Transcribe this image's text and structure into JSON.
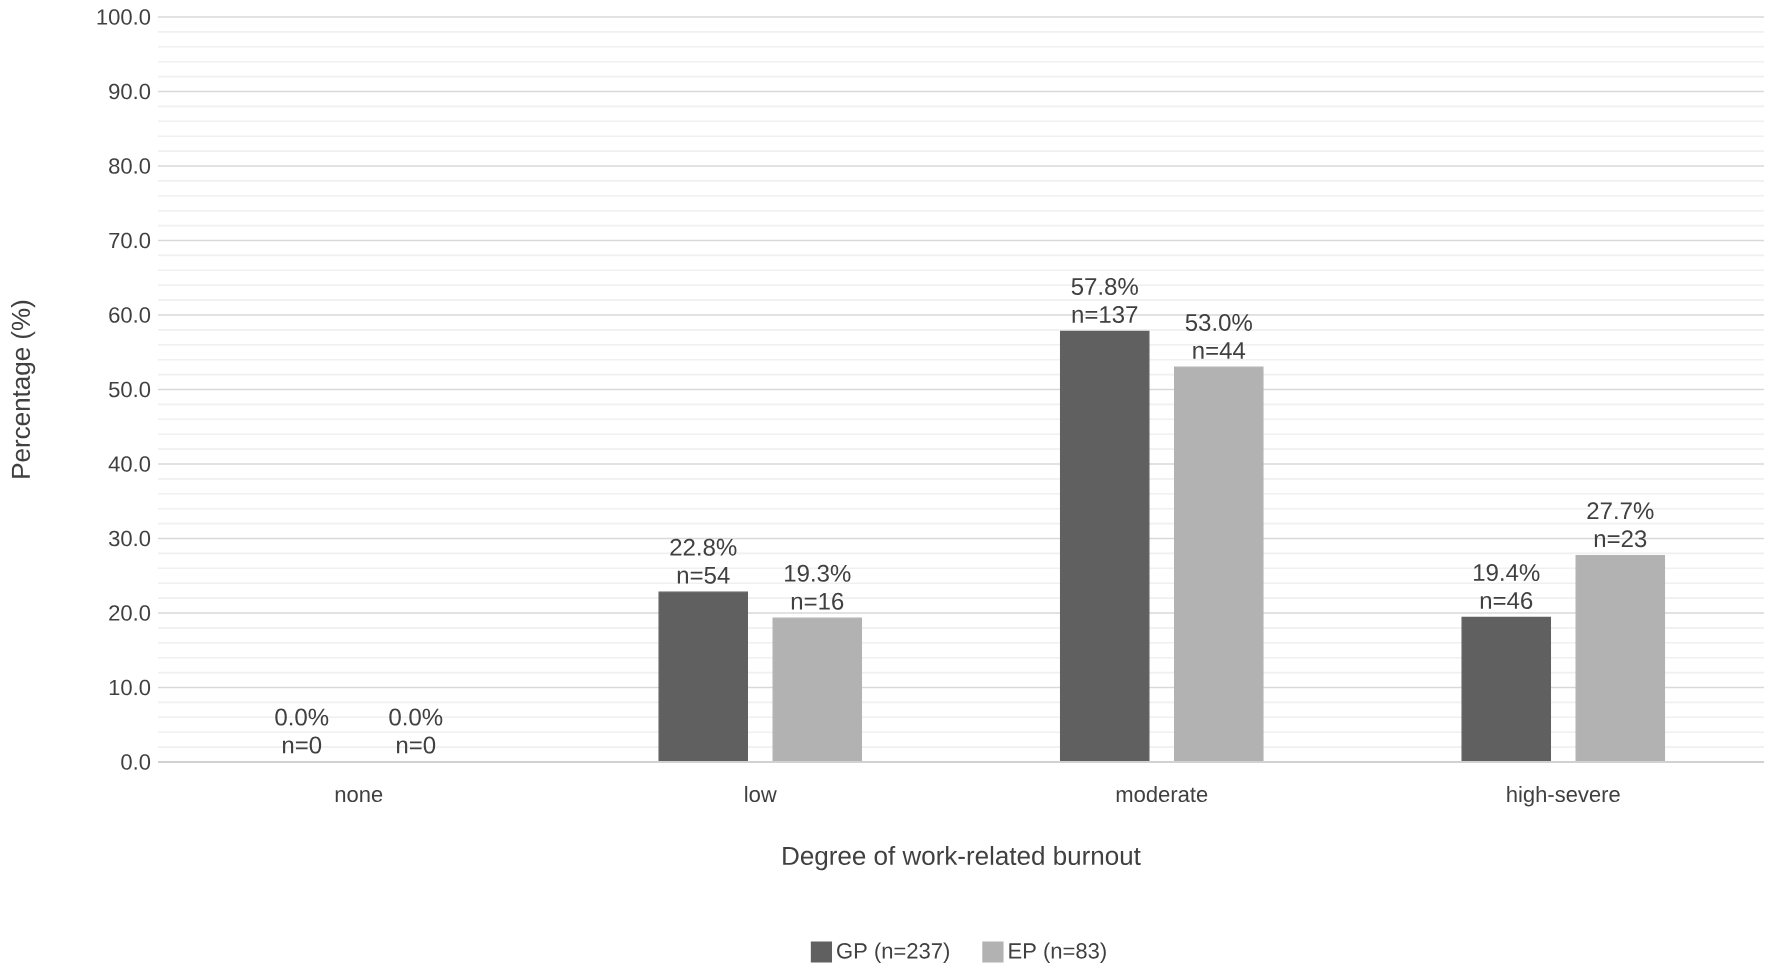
{
  "chart_data": {
    "type": "bar",
    "xlabel": "Degree of work-related burnout",
    "ylabel": "Percentage (%)",
    "categories": [
      "none",
      "low",
      "moderate",
      "high-severe"
    ],
    "series": [
      {
        "name": "GP (n=237)",
        "color": "#606060",
        "values": [
          0.0,
          22.8,
          57.8,
          19.4
        ],
        "value_labels": [
          "0.0% n=0",
          "22.8% n=54",
          "57.8% n=137",
          "19.4% n=46"
        ]
      },
      {
        "name": "EP (n=83)",
        "color": "#b2b2b2",
        "values": [
          0.0,
          19.3,
          53.0,
          27.7
        ],
        "value_labels": [
          "0.0% n=0",
          "19.3% n=16",
          "53.0% n=44",
          "27.7% n=23"
        ]
      }
    ],
    "ylim": [
      0,
      100
    ],
    "yticks": [
      {
        "value": 0,
        "label": "0.0"
      },
      {
        "value": 2,
        "label": null
      },
      {
        "value": 4,
        "label": null
      },
      {
        "value": 6,
        "label": null
      },
      {
        "value": 8,
        "label": null
      },
      {
        "value": 10,
        "label": "10.0"
      },
      {
        "value": 12,
        "label": null
      },
      {
        "value": 14,
        "label": null
      },
      {
        "value": 16,
        "label": null
      },
      {
        "value": 18,
        "label": null
      },
      {
        "value": 20,
        "label": "20.0"
      },
      {
        "value": 22,
        "label": null
      },
      {
        "value": 24,
        "label": null
      },
      {
        "value": 26,
        "label": null
      },
      {
        "value": 28,
        "label": null
      },
      {
        "value": 30,
        "label": "30.0"
      },
      {
        "value": 32,
        "label": null
      },
      {
        "value": 34,
        "label": null
      },
      {
        "value": 36,
        "label": null
      },
      {
        "value": 38,
        "label": null
      },
      {
        "value": 40,
        "label": "40.0"
      },
      {
        "value": 42,
        "label": null
      },
      {
        "value": 44,
        "label": null
      },
      {
        "value": 46,
        "label": null
      },
      {
        "value": 48,
        "label": null
      },
      {
        "value": 50,
        "label": "50.0"
      },
      {
        "value": 52,
        "label": null
      },
      {
        "value": 54,
        "label": null
      },
      {
        "value": 56,
        "label": null
      },
      {
        "value": 58,
        "label": null
      },
      {
        "value": 60,
        "label": "60.0"
      },
      {
        "value": 62,
        "label": null
      },
      {
        "value": 64,
        "label": null
      },
      {
        "value": 66,
        "label": null
      },
      {
        "value": 68,
        "label": null
      },
      {
        "value": 70,
        "label": "70.0"
      },
      {
        "value": 72,
        "label": null
      },
      {
        "value": 74,
        "label": null
      },
      {
        "value": 76,
        "label": null
      },
      {
        "value": 78,
        "label": null
      },
      {
        "value": 80,
        "label": "80.0"
      },
      {
        "value": 82,
        "label": null
      },
      {
        "value": 84,
        "label": null
      },
      {
        "value": 86,
        "label": null
      },
      {
        "value": 88,
        "label": null
      },
      {
        "value": 90,
        "label": "90.0"
      },
      {
        "value": 92,
        "label": null
      },
      {
        "value": 94,
        "label": null
      },
      {
        "value": 96,
        "label": null
      },
      {
        "value": 98,
        "label": null
      },
      {
        "value": 100,
        "label": "100.0"
      }
    ],
    "grid": "y",
    "legend": "bottom"
  }
}
